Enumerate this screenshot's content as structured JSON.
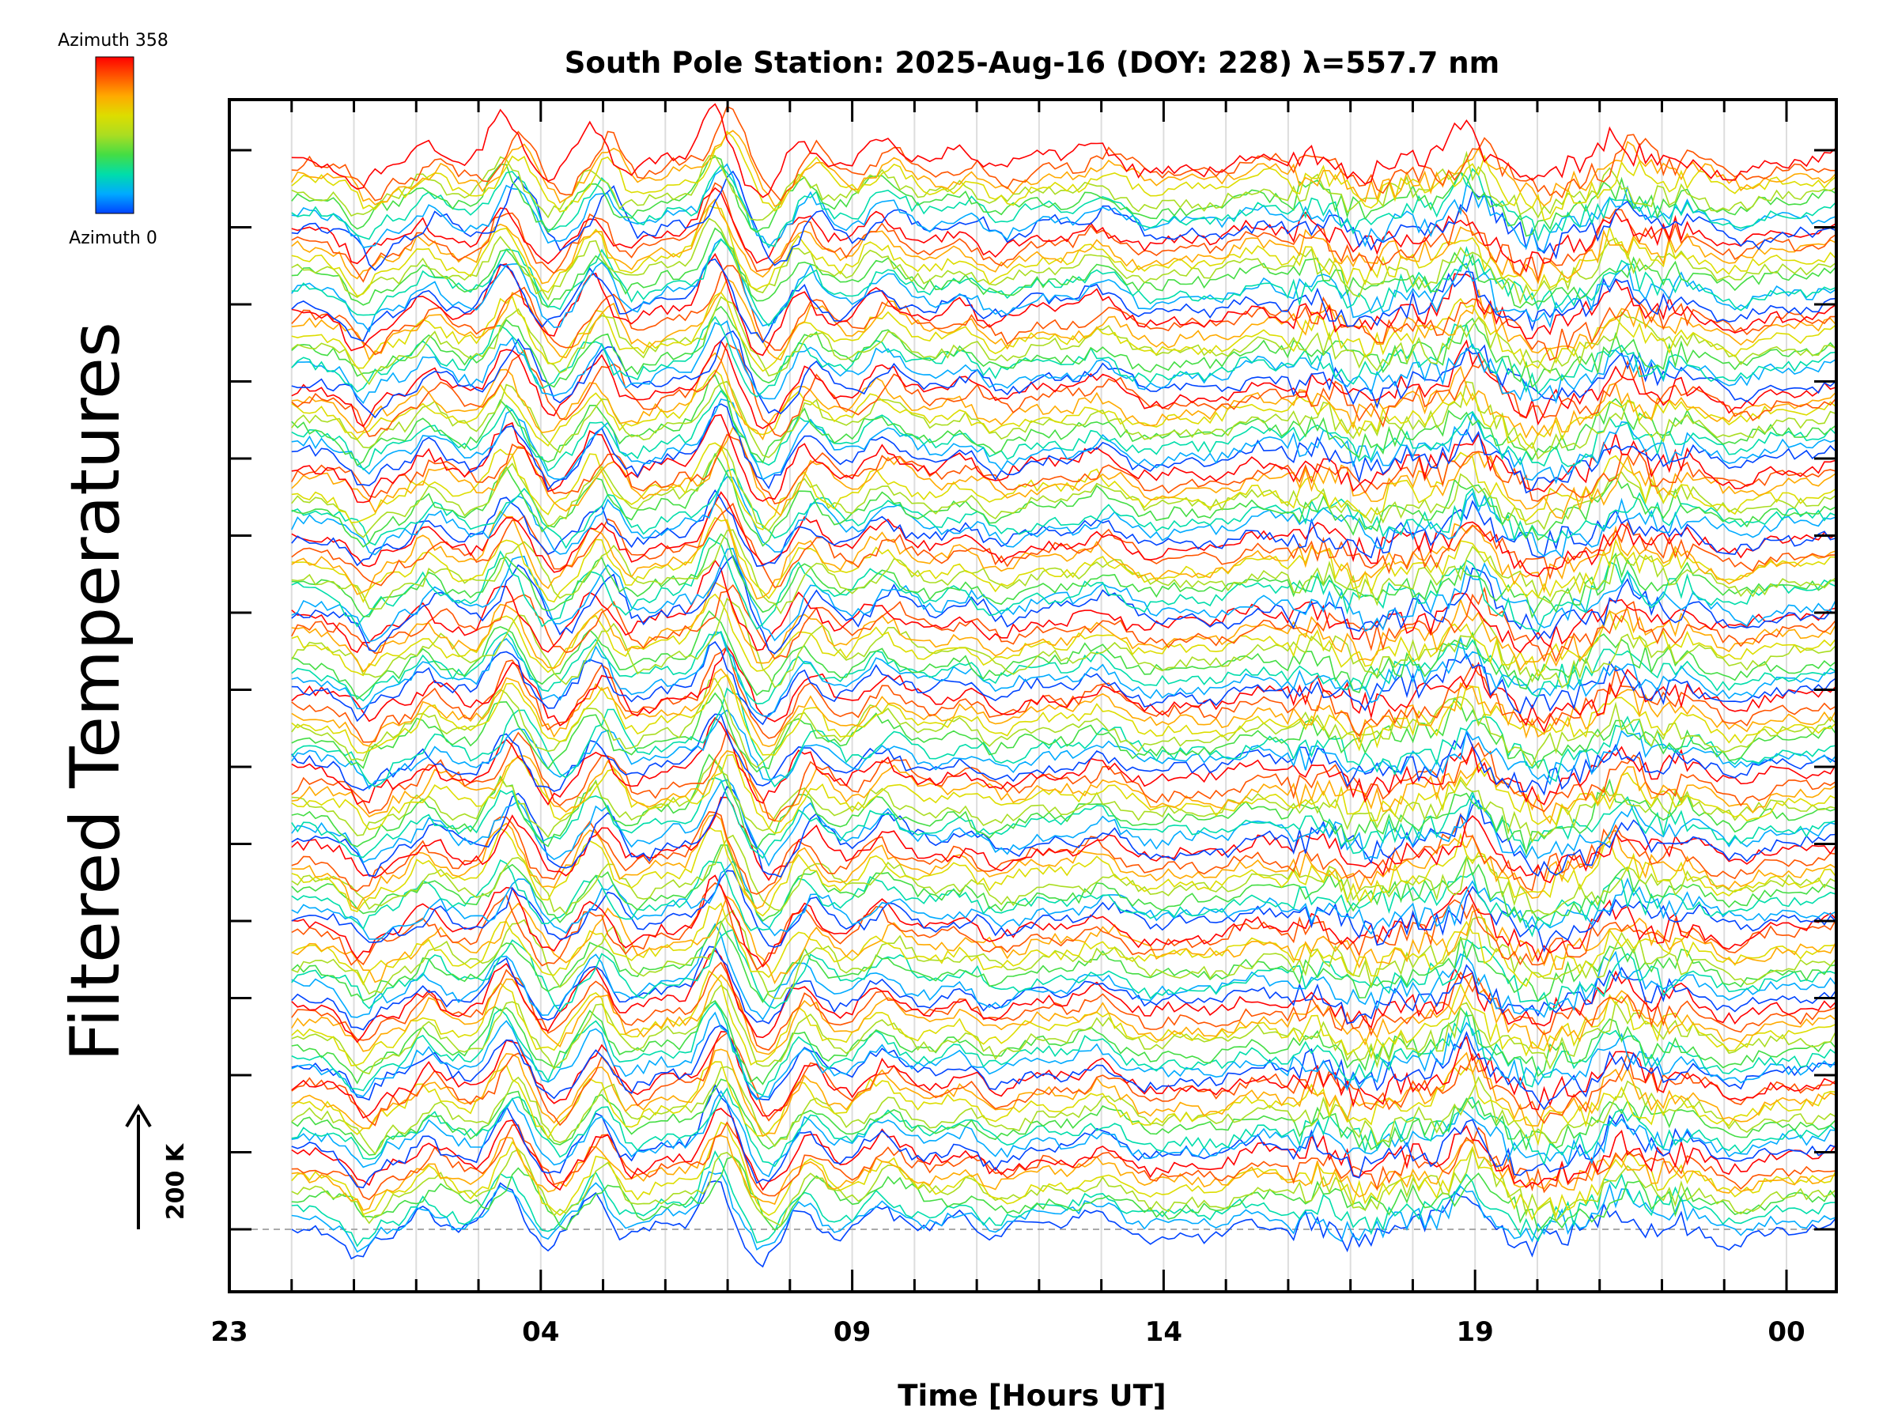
{
  "chart_data": {
    "type": "line",
    "title": "South Pole Station: 2025-Aug-16 (DOY: 228) λ=557.7 nm",
    "xlabel": "Time [Hours UT]",
    "ylabel": "Filtered Temperatures",
    "x_tick_labels": [
      "23",
      "04",
      "09",
      "14",
      "19",
      "00"
    ],
    "x_range_hours": [
      -1.0,
      24.8
    ],
    "data_time_range_hours": [
      0.0,
      24.8
    ],
    "scale_bar_label": "200 K",
    "colorbar": {
      "top_label": "Azimuth 358",
      "bottom_label": "Azimuth 0",
      "colors": [
        "#0044ff",
        "#00aaff",
        "#00ddaa",
        "#44dd44",
        "#aadd22",
        "#dddd00",
        "#ffaa00",
        "#ff5500",
        "#ff0000"
      ]
    },
    "azimuth_groups": 14,
    "traces_per_group": 9,
    "azimuth_range_deg": [
      0,
      358
    ],
    "reference_line": "dashed baseline at lowest trace"
  }
}
